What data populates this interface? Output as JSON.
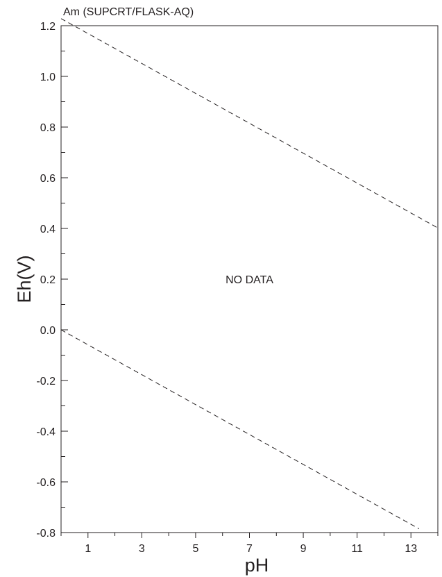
{
  "chart_data": {
    "type": "line",
    "title": "Am (SUPCRT/FLASK-AQ)",
    "xlabel": "pH",
    "ylabel": "Eh(V)",
    "xlim": [
      0,
      14
    ],
    "ylim": [
      -0.8,
      1.2
    ],
    "x_ticks": [
      1,
      3,
      5,
      7,
      9,
      11,
      13
    ],
    "y_ticks": [
      1.2,
      1.0,
      0.8,
      0.6,
      0.4,
      0.2,
      0.0,
      -0.2,
      -0.4,
      -0.6,
      -0.8
    ],
    "y_tick_labels": [
      "1.2",
      "1.0",
      "0.8",
      "0.6",
      "0.4",
      "0.2",
      "0.0",
      "-0.2",
      "-0.4",
      "-0.6",
      "-0.8"
    ],
    "grid": false,
    "series": [
      {
        "style": "dashed",
        "x": [
          0,
          14
        ],
        "y": [
          1.228,
          0.402
        ]
      },
      {
        "style": "dashed",
        "x": [
          0,
          13.3
        ],
        "y": [
          0.0,
          -0.785
        ]
      }
    ],
    "annotations": [
      {
        "text": "NO DATA",
        "x": 7,
        "y": 0.2
      }
    ]
  }
}
